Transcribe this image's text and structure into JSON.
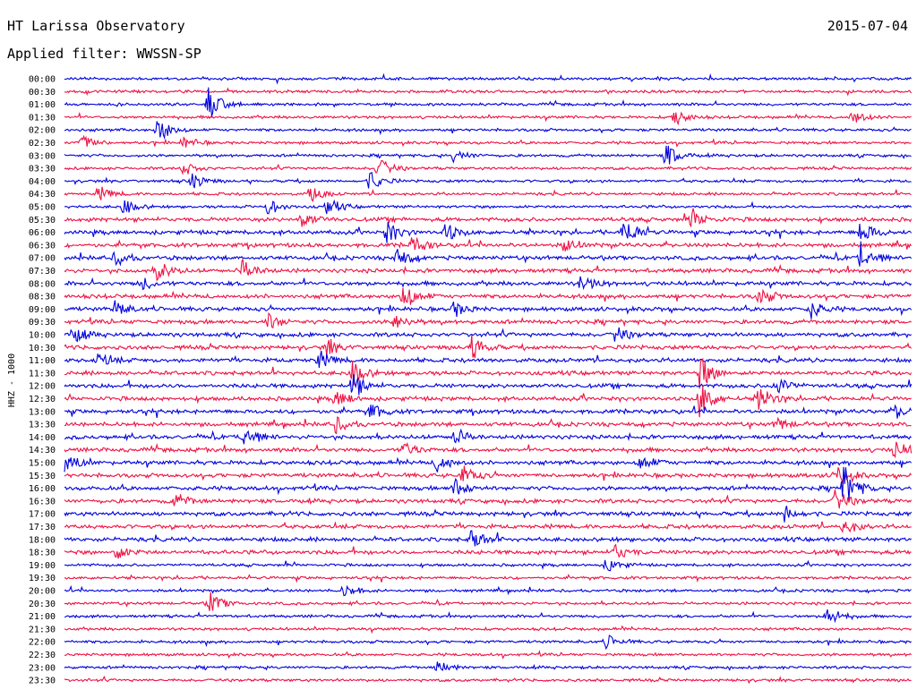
{
  "header": {
    "station": "HT Larissa Observatory",
    "date": "2015-07-04",
    "filter": "Applied filter: WWSSN-SP"
  },
  "chart_data": {
    "type": "line",
    "ylabel": "HHZ - 1000",
    "row_labels": [
      "00:00",
      "00:30",
      "01:00",
      "01:30",
      "02:00",
      "02:30",
      "03:00",
      "03:30",
      "04:00",
      "04:30",
      "05:00",
      "05:30",
      "06:00",
      "06:30",
      "07:00",
      "07:30",
      "08:00",
      "08:30",
      "09:00",
      "09:30",
      "10:00",
      "10:30",
      "11:00",
      "11:30",
      "12:00",
      "12:30",
      "13:00",
      "13:30",
      "14:00",
      "14:30",
      "15:00",
      "15:30",
      "16:00",
      "16:30",
      "17:00",
      "17:30",
      "18:00",
      "18:30",
      "19:00",
      "19:30",
      "20:00",
      "20:30",
      "21:00",
      "21:30",
      "22:00",
      "22:30",
      "23:00",
      "23:30"
    ],
    "series_colors": [
      "#0000dd",
      "#ee1144"
    ],
    "color_pattern": "alternating",
    "grid": false,
    "events": [
      {
        "row": 2,
        "t": 0.17,
        "amp": 2.0
      },
      {
        "row": 3,
        "t": 0.72,
        "amp": 1.2
      },
      {
        "row": 3,
        "t": 0.93,
        "amp": 1.0
      },
      {
        "row": 4,
        "t": 0.11,
        "amp": 1.6
      },
      {
        "row": 5,
        "t": 0.02,
        "amp": 1.0
      },
      {
        "row": 5,
        "t": 0.14,
        "amp": 0.8
      },
      {
        "row": 6,
        "t": 0.46,
        "amp": 0.9
      },
      {
        "row": 6,
        "t": 0.71,
        "amp": 1.6
      },
      {
        "row": 7,
        "t": 0.37,
        "amp": 1.4
      },
      {
        "row": 7,
        "t": 0.14,
        "amp": 0.9
      },
      {
        "row": 8,
        "t": 0.15,
        "amp": 1.0
      },
      {
        "row": 8,
        "t": 0.36,
        "amp": 1.2
      },
      {
        "row": 9,
        "t": 0.04,
        "amp": 1.0
      },
      {
        "row": 9,
        "t": 0.29,
        "amp": 1.0
      },
      {
        "row": 10,
        "t": 0.07,
        "amp": 1.0
      },
      {
        "row": 10,
        "t": 0.24,
        "amp": 1.0
      },
      {
        "row": 10,
        "t": 0.31,
        "amp": 1.2
      },
      {
        "row": 11,
        "t": 0.74,
        "amp": 1.2
      },
      {
        "row": 11,
        "t": 0.28,
        "amp": 1.0
      },
      {
        "row": 12,
        "t": 0.38,
        "amp": 1.4
      },
      {
        "row": 12,
        "t": 0.45,
        "amp": 1.2
      },
      {
        "row": 12,
        "t": 0.66,
        "amp": 2.0
      },
      {
        "row": 12,
        "t": 0.94,
        "amp": 1.6
      },
      {
        "row": 13,
        "t": 0.41,
        "amp": 1.2
      },
      {
        "row": 13,
        "t": 0.59,
        "amp": 0.9
      },
      {
        "row": 14,
        "t": 0.06,
        "amp": 1.0
      },
      {
        "row": 14,
        "t": 0.39,
        "amp": 1.6
      },
      {
        "row": 14,
        "t": 0.94,
        "amp": 2.0
      },
      {
        "row": 15,
        "t": 0.11,
        "amp": 1.2
      },
      {
        "row": 15,
        "t": 0.21,
        "amp": 1.4
      },
      {
        "row": 16,
        "t": 0.09,
        "amp": 0.9
      },
      {
        "row": 16,
        "t": 0.61,
        "amp": 1.2
      },
      {
        "row": 17,
        "t": 0.4,
        "amp": 1.8
      },
      {
        "row": 17,
        "t": 0.82,
        "amp": 1.2
      },
      {
        "row": 18,
        "t": 0.06,
        "amp": 1.0
      },
      {
        "row": 18,
        "t": 0.46,
        "amp": 1.0
      },
      {
        "row": 18,
        "t": 0.88,
        "amp": 1.2
      },
      {
        "row": 19,
        "t": 0.24,
        "amp": 1.0
      },
      {
        "row": 19,
        "t": 0.39,
        "amp": 1.0
      },
      {
        "row": 20,
        "t": 0.01,
        "amp": 1.0
      },
      {
        "row": 20,
        "t": 0.65,
        "amp": 1.0
      },
      {
        "row": 21,
        "t": 0.31,
        "amp": 1.0
      },
      {
        "row": 21,
        "t": 0.48,
        "amp": 1.6
      },
      {
        "row": 22,
        "t": 0.04,
        "amp": 0.9
      },
      {
        "row": 22,
        "t": 0.3,
        "amp": 1.2
      },
      {
        "row": 23,
        "t": 0.34,
        "amp": 1.6
      },
      {
        "row": 23,
        "t": 0.75,
        "amp": 2.2
      },
      {
        "row": 24,
        "t": 0.34,
        "amp": 1.6
      },
      {
        "row": 24,
        "t": 0.84,
        "amp": 1.4
      },
      {
        "row": 25,
        "t": 0.32,
        "amp": 1.2
      },
      {
        "row": 25,
        "t": 0.75,
        "amp": 2.4
      },
      {
        "row": 25,
        "t": 0.82,
        "amp": 1.6
      },
      {
        "row": 26,
        "t": 0.36,
        "amp": 1.2
      },
      {
        "row": 26,
        "t": 0.98,
        "amp": 0.9
      },
      {
        "row": 27,
        "t": 0.32,
        "amp": 1.0
      },
      {
        "row": 27,
        "t": 0.84,
        "amp": 0.9
      },
      {
        "row": 28,
        "t": 0.21,
        "amp": 1.8
      },
      {
        "row": 28,
        "t": 0.46,
        "amp": 1.2
      },
      {
        "row": 29,
        "t": 0.4,
        "amp": 1.0
      },
      {
        "row": 29,
        "t": 0.98,
        "amp": 1.2
      },
      {
        "row": 30,
        "t": 0.0,
        "amp": 1.4
      },
      {
        "row": 30,
        "t": 0.44,
        "amp": 1.2
      },
      {
        "row": 30,
        "t": 0.68,
        "amp": 1.0
      },
      {
        "row": 31,
        "t": 0.47,
        "amp": 1.2
      },
      {
        "row": 31,
        "t": 0.91,
        "amp": 1.6
      },
      {
        "row": 32,
        "t": 0.46,
        "amp": 1.2
      },
      {
        "row": 32,
        "t": 0.92,
        "amp": 2.8
      },
      {
        "row": 33,
        "t": 0.13,
        "amp": 1.0
      },
      {
        "row": 33,
        "t": 0.91,
        "amp": 1.4
      },
      {
        "row": 34,
        "t": 0.85,
        "amp": 1.0
      },
      {
        "row": 35,
        "t": 0.92,
        "amp": 1.0
      },
      {
        "row": 36,
        "t": 0.48,
        "amp": 1.4
      },
      {
        "row": 37,
        "t": 0.06,
        "amp": 0.9
      },
      {
        "row": 37,
        "t": 0.65,
        "amp": 1.0
      },
      {
        "row": 38,
        "t": 0.64,
        "amp": 1.0
      },
      {
        "row": 40,
        "t": 0.33,
        "amp": 0.9
      },
      {
        "row": 41,
        "t": 0.17,
        "amp": 1.6
      },
      {
        "row": 42,
        "t": 0.9,
        "amp": 1.4
      },
      {
        "row": 44,
        "t": 0.64,
        "amp": 0.9
      },
      {
        "row": 46,
        "t": 0.44,
        "amp": 0.9
      }
    ]
  }
}
